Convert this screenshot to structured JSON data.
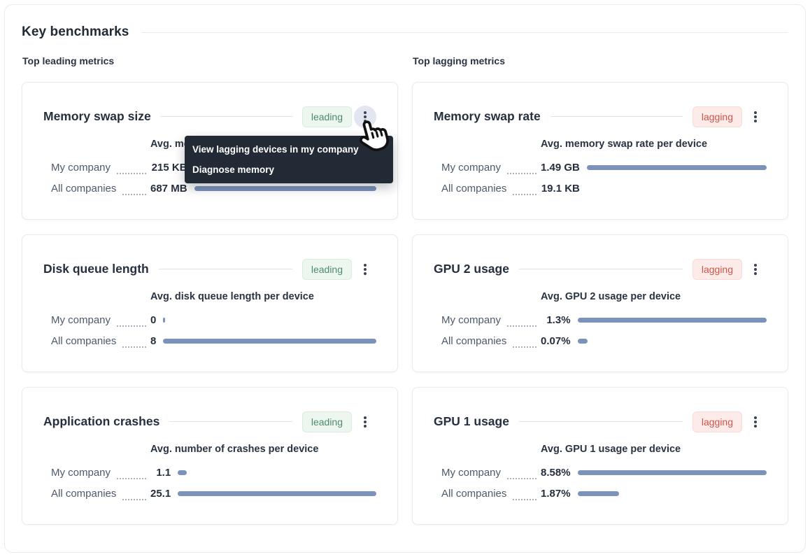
{
  "header": {
    "title": "Key benchmarks"
  },
  "sections": [
    {
      "label": "Top leading metrics",
      "cards": [
        {
          "title": "Memory swap size",
          "status": "leading",
          "chart_title": "Avg. memory swap size per device",
          "rows": [
            {
              "label": "My company",
              "value": "215 KB",
              "bar_pct": 0
            },
            {
              "label": "All companies",
              "value": "687 MB",
              "bar_pct": 100
            }
          ]
        },
        {
          "title": "Disk queue length",
          "status": "leading",
          "chart_title": "Avg. disk queue length per device",
          "rows": [
            {
              "label": "My company",
              "value": "0",
              "bar_pct": 1
            },
            {
              "label": "All companies",
              "value": "8",
              "bar_pct": 100
            }
          ]
        },
        {
          "title": "Application crashes",
          "status": "leading",
          "chart_title": "Avg. number of crashes per device",
          "rows": [
            {
              "label": "My company",
              "value": "1.1",
              "bar_pct": 4.4
            },
            {
              "label": "All companies",
              "value": "25.1",
              "bar_pct": 100
            }
          ]
        }
      ]
    },
    {
      "label": "Top lagging metrics",
      "cards": [
        {
          "title": "Memory swap rate",
          "status": "lagging",
          "chart_title": "Avg. memory swap rate per device",
          "rows": [
            {
              "label": "My company",
              "value": "1.49 GB",
              "bar_pct": 100
            },
            {
              "label": "All companies",
              "value": "19.1 KB",
              "bar_pct": 0
            }
          ]
        },
        {
          "title": "GPU 2 usage",
          "status": "lagging",
          "chart_title": "Avg. GPU 2 usage per device",
          "rows": [
            {
              "label": "My company",
              "value": "1.3%",
              "bar_pct": 100
            },
            {
              "label": "All companies",
              "value": "0.07%",
              "bar_pct": 5.4
            }
          ]
        },
        {
          "title": "GPU 1 usage",
          "status": "lagging",
          "chart_title": "Avg. GPU 1 usage per device",
          "rows": [
            {
              "label": "My company",
              "value": "8.58%",
              "bar_pct": 100
            },
            {
              "label": "All companies",
              "value": "1.87%",
              "bar_pct": 21.8
            }
          ]
        }
      ]
    }
  ],
  "context_menu": {
    "items": [
      {
        "label": "View lagging devices in my company"
      },
      {
        "label": "Diagnose memory"
      }
    ]
  },
  "colors": {
    "bar": "#7b92ba",
    "leading_bg": "#edf7f0",
    "leading_text": "#4d8a6a",
    "lagging_bg": "#fcebe9",
    "lagging_text": "#d0544a",
    "menu_bg": "#222b35",
    "kebab_hover_bg": "#e2e6f1"
  }
}
